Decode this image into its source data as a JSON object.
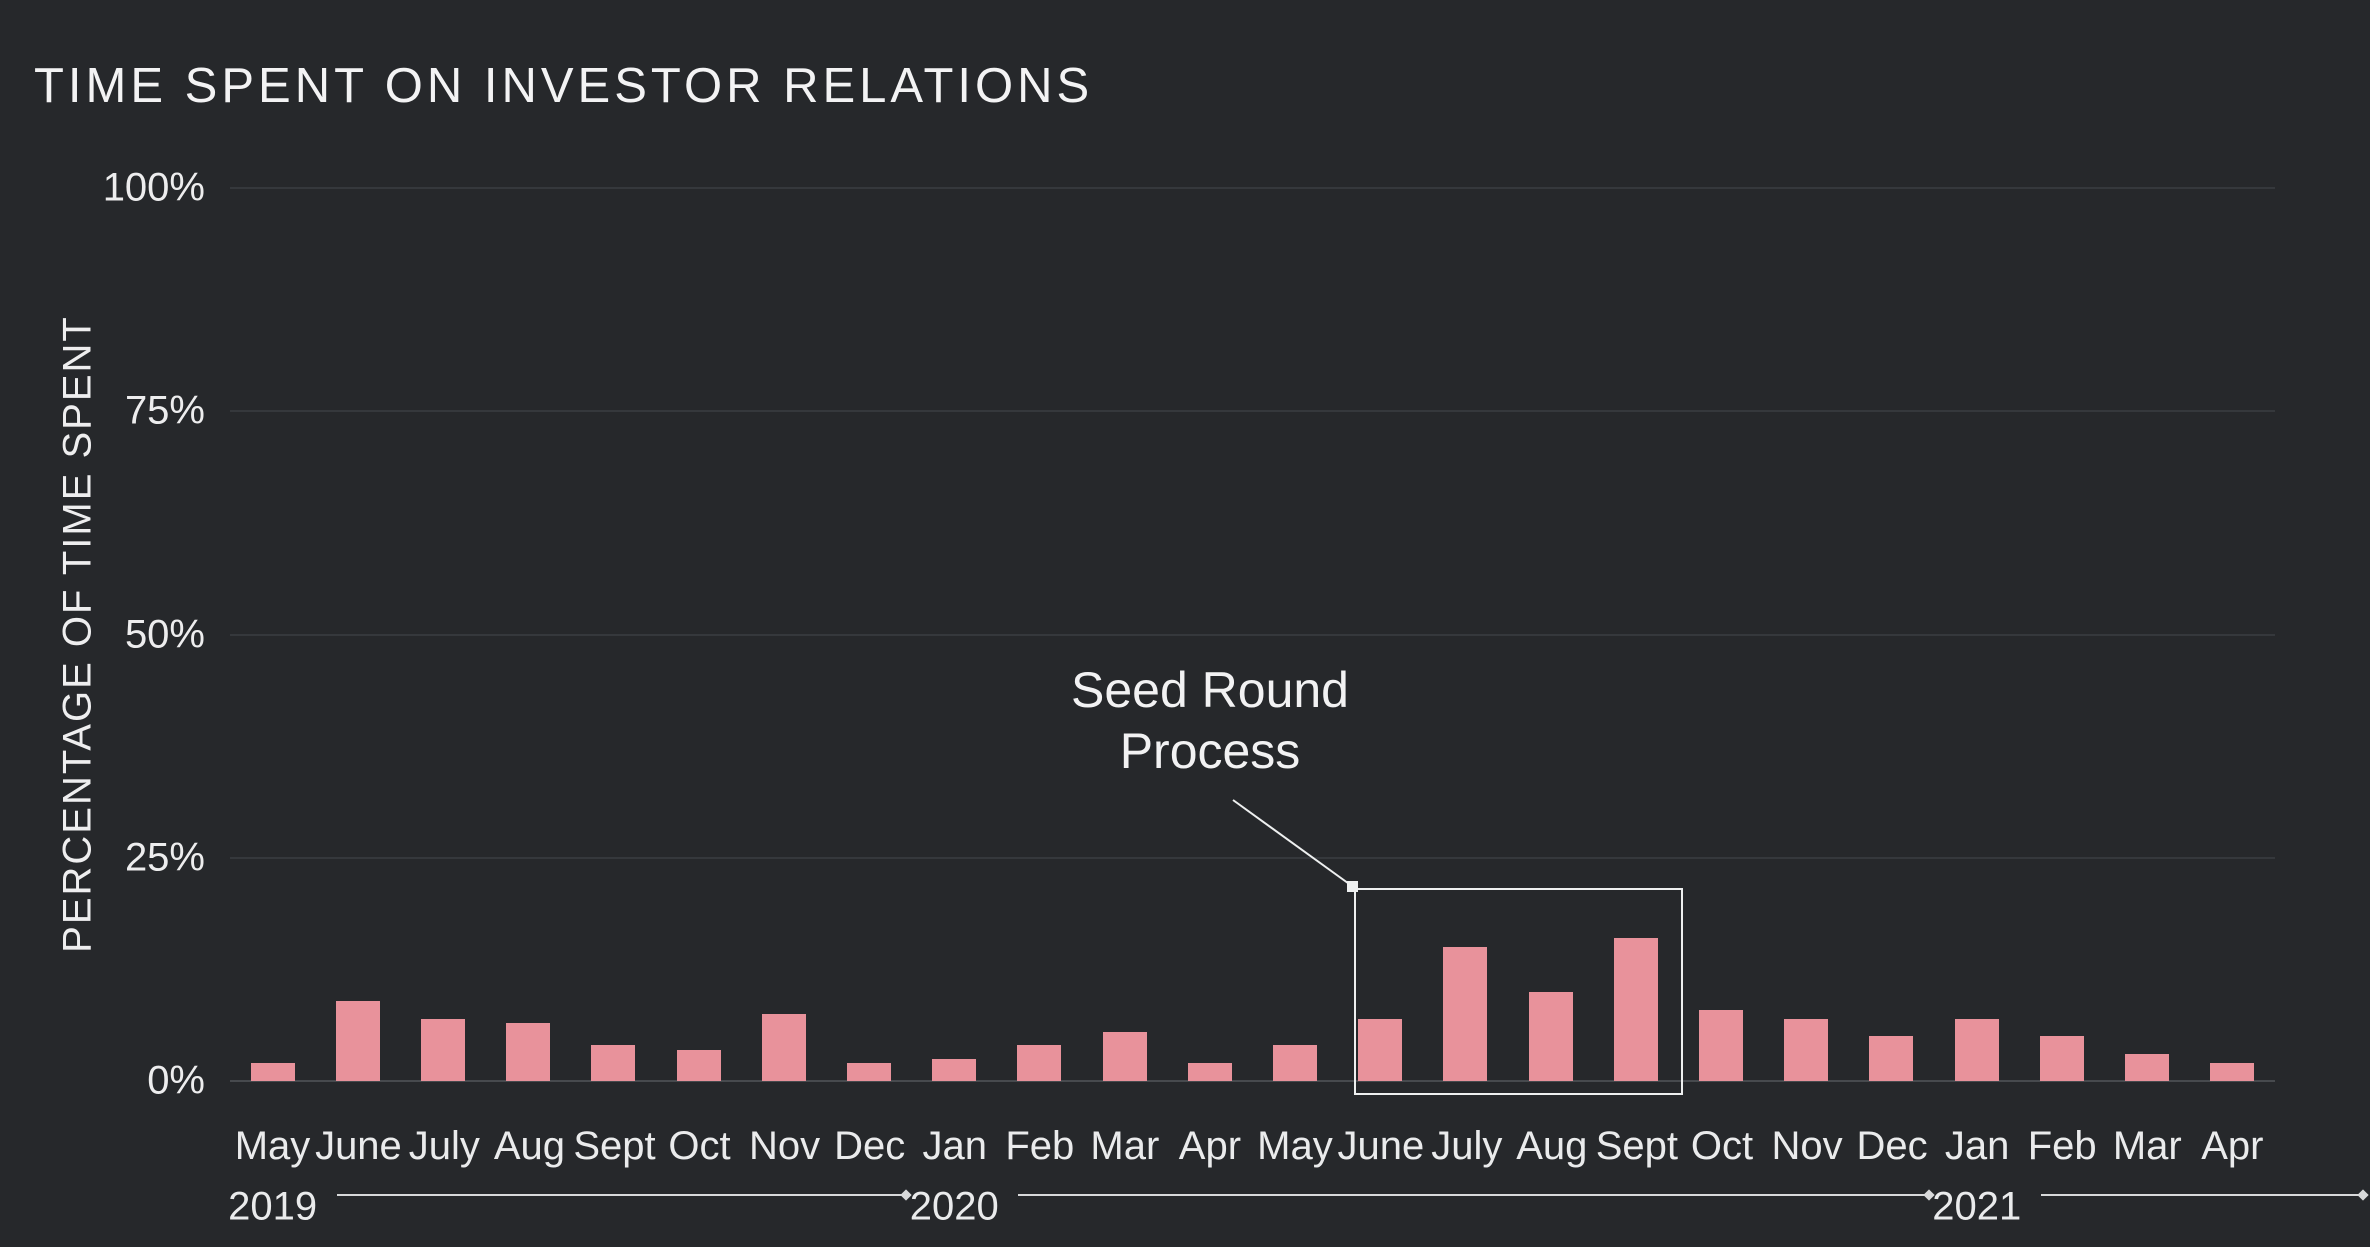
{
  "chart": {
    "title": "TIME SPENT ON INVESTOR RELATIONS",
    "ylabel": "PERCENTAGE OF TIME SPENT",
    "annotation": {
      "line1": "Seed Round",
      "line2": "Process"
    }
  },
  "colors": {
    "background": "#26282b",
    "bar": "#e8929b",
    "text": "#f3f3f4",
    "axis_text": "#eaebec",
    "gridline": "#35383c",
    "baseline": "#474a4e",
    "annotation_box_border": "#eef0f0",
    "year_line": "#d8d9da"
  },
  "chart_data": {
    "type": "bar",
    "title": "TIME SPENT ON INVESTOR RELATIONS",
    "xlabel": "",
    "ylabel": "PERCENTAGE OF TIME SPENT",
    "ylim": [
      0,
      100
    ],
    "yticks": [
      100,
      75,
      50,
      25,
      0
    ],
    "ytick_labels": [
      "100%",
      "75%",
      "50%",
      "25%",
      "0%"
    ],
    "grid": "horizontal",
    "legend": "none",
    "categories": [
      "May",
      "June",
      "July",
      "Aug",
      "Sept",
      "Oct",
      "Nov",
      "Dec",
      "Jan",
      "Feb",
      "Mar",
      "Apr",
      "May",
      "June",
      "July",
      "Aug",
      "Sept",
      "Oct",
      "Nov",
      "Dec",
      "Jan",
      "Feb",
      "Mar",
      "Apr"
    ],
    "values": [
      2,
      9,
      7,
      6.5,
      4,
      3.5,
      7.5,
      2,
      2.5,
      4,
      5.5,
      2,
      4,
      7,
      15,
      10,
      16,
      8,
      7,
      5,
      7,
      5,
      3,
      2
    ],
    "year_markers": [
      {
        "label": "2019",
        "month_index": 0
      },
      {
        "label": "2020",
        "month_index": 8
      },
      {
        "label": "2021",
        "month_index": 20
      }
    ],
    "annotation": {
      "text": "Seed Round Process",
      "highlight_months": [
        "June 2020",
        "July 2020",
        "Aug 2020",
        "Sept 2020"
      ]
    }
  }
}
